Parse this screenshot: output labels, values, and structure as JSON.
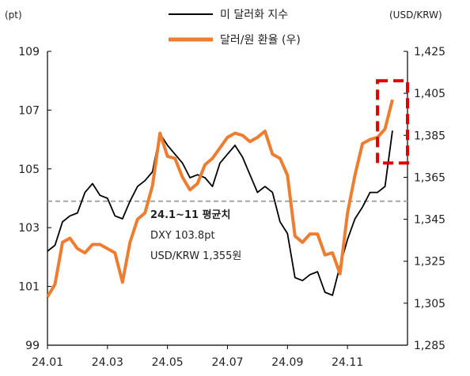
{
  "chart_data": {
    "type": "line",
    "title": "",
    "left_unit": "(pt)",
    "right_unit": "(USD/KRW)",
    "left_axis": {
      "min": 99,
      "max": 109,
      "ticks": [
        "99",
        "101",
        "103",
        "105",
        "107",
        "109"
      ]
    },
    "right_axis": {
      "min": 1285,
      "max": 1425,
      "ticks": [
        "1,285",
        "1,305",
        "1,325",
        "1,345",
        "1,365",
        "1,385",
        "1,405",
        "1,425"
      ]
    },
    "x_ticks": [
      "24.01",
      "24.03",
      "24.05",
      "24.07",
      "24.09",
      "24.11"
    ],
    "grid": false,
    "legend_position": "top-center",
    "series": [
      {
        "name": "미 달러화 지수",
        "axis": "left",
        "color": "#000000",
        "points": [
          [
            0.0,
            102.2
          ],
          [
            0.5,
            102.4
          ],
          [
            1.0,
            103.2
          ],
          [
            1.5,
            103.4
          ],
          [
            2.0,
            103.5
          ],
          [
            2.5,
            104.2
          ],
          [
            3.0,
            104.5
          ],
          [
            3.5,
            104.1
          ],
          [
            4.0,
            104.0
          ],
          [
            4.5,
            103.4
          ],
          [
            5.0,
            103.3
          ],
          [
            5.5,
            103.9
          ],
          [
            6.0,
            104.4
          ],
          [
            6.5,
            104.6
          ],
          [
            7.0,
            104.9
          ],
          [
            7.5,
            106.2
          ],
          [
            8.0,
            105.8
          ],
          [
            8.5,
            105.5
          ],
          [
            9.0,
            105.2
          ],
          [
            9.5,
            104.7
          ],
          [
            10.0,
            104.8
          ],
          [
            10.5,
            104.7
          ],
          [
            11.0,
            104.4
          ],
          [
            11.5,
            105.2
          ],
          [
            12.0,
            105.5
          ],
          [
            12.5,
            105.8
          ],
          [
            13.0,
            105.4
          ],
          [
            13.5,
            104.8
          ],
          [
            14.0,
            104.2
          ],
          [
            14.5,
            104.4
          ],
          [
            15.0,
            104.2
          ],
          [
            15.5,
            103.2
          ],
          [
            16.0,
            102.8
          ],
          [
            16.5,
            101.3
          ],
          [
            17.0,
            101.2
          ],
          [
            17.5,
            101.4
          ],
          [
            18.0,
            101.5
          ],
          [
            18.5,
            100.8
          ],
          [
            19.0,
            100.7
          ],
          [
            19.5,
            101.7
          ],
          [
            20.0,
            102.6
          ],
          [
            20.5,
            103.3
          ],
          [
            21.0,
            103.7
          ],
          [
            21.5,
            104.2
          ],
          [
            22.0,
            104.2
          ],
          [
            22.5,
            104.4
          ],
          [
            23.0,
            106.3
          ]
        ]
      },
      {
        "name": "달러/원 환율 (우)",
        "axis": "right",
        "color": "#ED7D31",
        "points": [
          [
            0.0,
            1308
          ],
          [
            0.5,
            1314
          ],
          [
            1.0,
            1334
          ],
          [
            1.5,
            1336
          ],
          [
            2.0,
            1331
          ],
          [
            2.5,
            1329
          ],
          [
            3.0,
            1333
          ],
          [
            3.5,
            1333
          ],
          [
            4.0,
            1331
          ],
          [
            4.5,
            1329
          ],
          [
            5.0,
            1315
          ],
          [
            5.5,
            1334
          ],
          [
            6.0,
            1345
          ],
          [
            6.5,
            1348
          ],
          [
            7.0,
            1361
          ],
          [
            7.5,
            1386
          ],
          [
            8.0,
            1375
          ],
          [
            8.5,
            1374
          ],
          [
            9.0,
            1365
          ],
          [
            9.5,
            1359
          ],
          [
            10.0,
            1362
          ],
          [
            10.5,
            1371
          ],
          [
            11.0,
            1374
          ],
          [
            11.5,
            1379
          ],
          [
            12.0,
            1384
          ],
          [
            12.5,
            1386
          ],
          [
            13.0,
            1385
          ],
          [
            13.5,
            1382
          ],
          [
            14.0,
            1384
          ],
          [
            14.5,
            1387
          ],
          [
            15.0,
            1376
          ],
          [
            15.5,
            1374
          ],
          [
            16.0,
            1366
          ],
          [
            16.5,
            1337
          ],
          [
            17.0,
            1334
          ],
          [
            17.5,
            1338
          ],
          [
            18.0,
            1338
          ],
          [
            18.5,
            1328
          ],
          [
            19.0,
            1329
          ],
          [
            19.5,
            1319
          ],
          [
            20.0,
            1348
          ],
          [
            20.5,
            1366
          ],
          [
            21.0,
            1381
          ],
          [
            21.5,
            1383
          ],
          [
            22.0,
            1384
          ],
          [
            22.5,
            1388
          ],
          [
            23.0,
            1402
          ]
        ]
      }
    ],
    "reference_line": {
      "axis": "left",
      "value": 103.9
    },
    "annotation": {
      "title": "24.1~11 평균치",
      "line1": "DXY 103.8pt",
      "line2": "USD/KRW 1,355원"
    },
    "highlight_box": {
      "x_from": 22.0,
      "x_to": 24.0,
      "left_y_from": 105.2,
      "left_y_to": 108.0
    }
  }
}
